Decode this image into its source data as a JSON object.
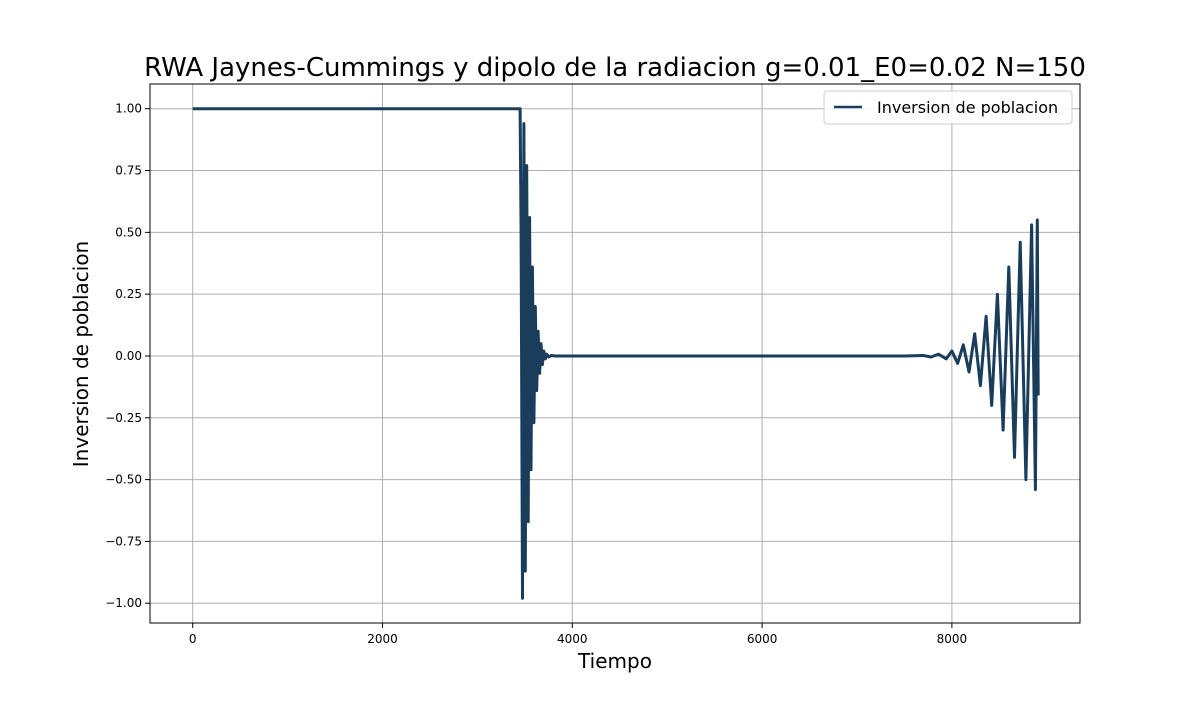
{
  "chart_data": {
    "type": "line",
    "title": "RWA Jaynes-Cummings y dipolo de la radiacion g=0.01_E0=0.02 N=150",
    "xlabel": "Tiempo",
    "ylabel": "Inversion de poblacion",
    "xlim": [
      -450,
      9350
    ],
    "ylim": [
      -1.08,
      1.1
    ],
    "xticks": [
      0,
      2000,
      4000,
      6000,
      8000
    ],
    "xtick_labels": [
      "0",
      "2000",
      "4000",
      "6000",
      "8000"
    ],
    "yticks": [
      -1.0,
      -0.75,
      -0.5,
      -0.25,
      0.0,
      0.25,
      0.5,
      0.75,
      1.0
    ],
    "ytick_labels": [
      "−1.00",
      "−0.75",
      "−0.50",
      "−0.25",
      "0.00",
      "0.25",
      "0.50",
      "0.75",
      "1.00"
    ],
    "grid": true,
    "legend_position": "top-right",
    "series": [
      {
        "name": "Inversion de poblacion",
        "color": "#1a3d5c",
        "x": [
          0,
          3450,
          3460,
          3475,
          3490,
          3505,
          3520,
          3535,
          3550,
          3565,
          3580,
          3595,
          3610,
          3625,
          3640,
          3655,
          3670,
          3685,
          3700,
          3715,
          3730,
          3750,
          3780,
          3820,
          3900,
          4500,
          5500,
          6500,
          7500,
          7700,
          7780,
          7860,
          7940,
          8000,
          8060,
          8120,
          8180,
          8240,
          8300,
          8360,
          8420,
          8480,
          8540,
          8600,
          8660,
          8720,
          8780,
          8840,
          8880,
          8900,
          8910
        ],
        "y": [
          1.0,
          1.0,
          0.5,
          -0.98,
          0.94,
          -0.87,
          0.77,
          -0.67,
          0.56,
          -0.46,
          0.36,
          -0.27,
          0.2,
          -0.14,
          0.1,
          -0.07,
          0.05,
          -0.035,
          0.02,
          -0.012,
          0.007,
          -0.004,
          0.002,
          0.0,
          0.0,
          0.0,
          0.0,
          0.0,
          0.0,
          0.002,
          -0.004,
          0.007,
          -0.012,
          0.02,
          -0.03,
          0.045,
          -0.065,
          0.09,
          -0.12,
          0.16,
          -0.2,
          0.25,
          -0.3,
          0.36,
          -0.41,
          0.46,
          -0.5,
          0.53,
          -0.54,
          0.55,
          -0.16
        ]
      }
    ]
  }
}
